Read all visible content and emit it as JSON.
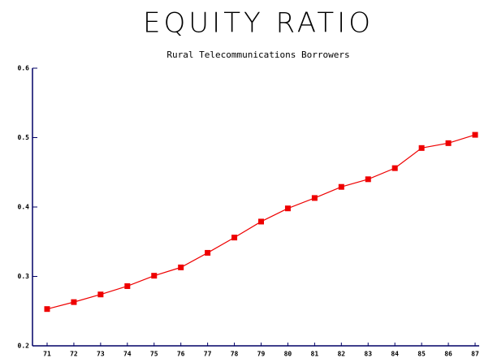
{
  "chart_data": {
    "type": "line",
    "title": "EQUITY RATIO",
    "subtitle": "Rural Telecommunications Borrowers",
    "categories": [
      "71",
      "72",
      "73",
      "74",
      "75",
      "76",
      "77",
      "78",
      "79",
      "80",
      "81",
      "82",
      "83",
      "84",
      "85",
      "86",
      "87"
    ],
    "series": [
      {
        "name": "Equity Ratio",
        "color": "#ee0000",
        "values": [
          0.253,
          0.263,
          0.274,
          0.286,
          0.301,
          0.313,
          0.334,
          0.356,
          0.379,
          0.398,
          0.413,
          0.429,
          0.44,
          0.456,
          0.485,
          0.492,
          0.504
        ]
      }
    ],
    "ylim": [
      0.2,
      0.6
    ],
    "yticks": [
      0.2,
      0.3,
      0.4,
      0.5,
      0.6
    ]
  }
}
